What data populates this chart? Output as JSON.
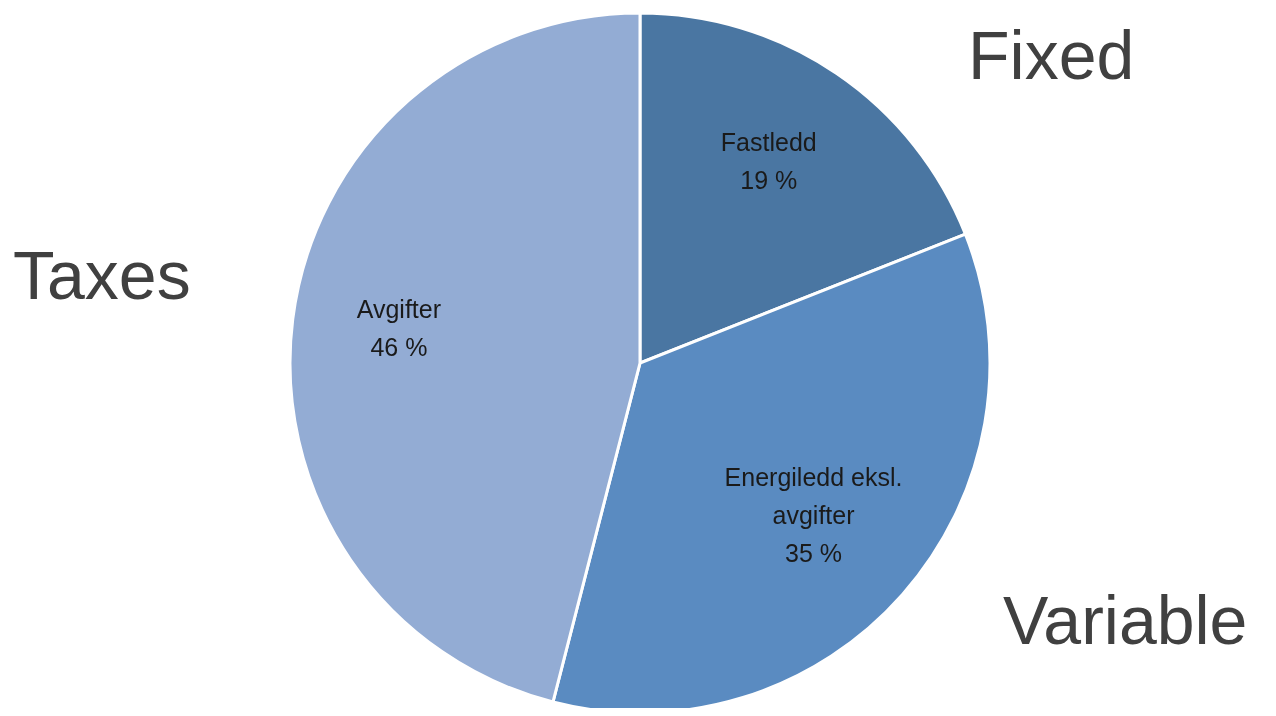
{
  "chart_data": {
    "type": "pie",
    "categories": [
      "Fastledd",
      "Energiledd eksl. avgifter",
      "Avgifter"
    ],
    "values": [
      19,
      35,
      46
    ],
    "value_labels": [
      "19 %",
      "35 %",
      "46 %"
    ],
    "colors": [
      "#4a76a2",
      "#5a8bc1",
      "#93acd4"
    ],
    "annotations": [
      "Fixed",
      "Variable",
      "Taxes"
    ]
  }
}
